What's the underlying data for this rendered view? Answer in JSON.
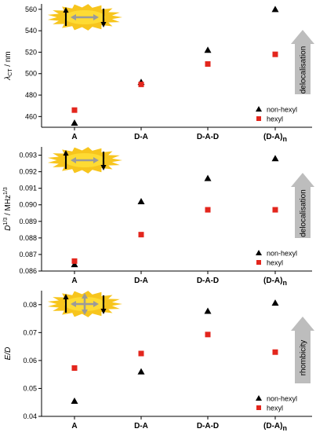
{
  "colors": {
    "non_hexyl": "#000000",
    "hexyl": "#e3261d",
    "starburst_fill": "#f7c51d",
    "starburst_core": "#ffe03a",
    "arrow_gray": "#9a9a9a",
    "delocal_arrow": "#bdbdbd"
  },
  "chart_data": [
    {
      "type": "scatter",
      "panel": "top",
      "categories": [
        "A",
        "D-A",
        "D-A-D",
        "(D-A)n"
      ],
      "ylabel": "λCT / nm",
      "ylim": [
        450,
        565
      ],
      "yticks": [
        460,
        480,
        500,
        520,
        540,
        560
      ],
      "ytick_labels": [
        "460",
        "480",
        "500",
        "520",
        "540",
        "560"
      ],
      "series": [
        {
          "name": "non-hexyl",
          "marker": "triangle",
          "values": [
            454,
            492,
            522,
            560
          ]
        },
        {
          "name": "hexyl",
          "marker": "square",
          "values": [
            466,
            490,
            509,
            518
          ]
        }
      ],
      "legend": "bottom-right",
      "arrow_label": "delocalisation",
      "inset_icon": "starburst-two-spins"
    },
    {
      "type": "scatter",
      "panel": "middle",
      "categories": [
        "A",
        "D-A",
        "D-A-D",
        "(D-A)n"
      ],
      "ylabel": "D^1/3 / MHz^1/3",
      "ylim": [
        0.086,
        0.0935
      ],
      "yticks": [
        0.086,
        0.087,
        0.088,
        0.089,
        0.09,
        0.091,
        0.092,
        0.093
      ],
      "ytick_labels": [
        "0.086",
        "0.087",
        "0.088",
        "0.089",
        "0.090",
        "0.091",
        "0.092",
        "0.093"
      ],
      "series": [
        {
          "name": "non-hexyl",
          "marker": "triangle",
          "values": [
            0.0864,
            0.0902,
            0.0916,
            0.0928
          ]
        },
        {
          "name": "hexyl",
          "marker": "square",
          "values": [
            0.0866,
            0.0882,
            0.0897,
            0.0897
          ]
        }
      ],
      "legend": "bottom-right",
      "arrow_label": "delocalisation",
      "inset_icon": "starburst-two-spins"
    },
    {
      "type": "scatter",
      "panel": "bottom",
      "categories": [
        "A",
        "D-A",
        "D-A-D",
        "(D-A)n"
      ],
      "ylabel": "E/D",
      "ylim": [
        0.04,
        0.085
      ],
      "yticks": [
        0.04,
        0.05,
        0.06,
        0.07,
        0.08
      ],
      "ytick_labels": [
        "0.04",
        "0.05",
        "0.06",
        "0.07",
        "0.08"
      ],
      "series": [
        {
          "name": "non-hexyl",
          "marker": "triangle",
          "values": [
            0.0455,
            0.056,
            0.0777,
            0.0806
          ]
        },
        {
          "name": "hexyl",
          "marker": "square",
          "values": [
            0.0573,
            0.0625,
            0.0693,
            0.063
          ]
        }
      ],
      "legend": "bottom-right",
      "arrow_label": "rhombicity",
      "inset_icon": "starburst-four-arrows"
    }
  ]
}
